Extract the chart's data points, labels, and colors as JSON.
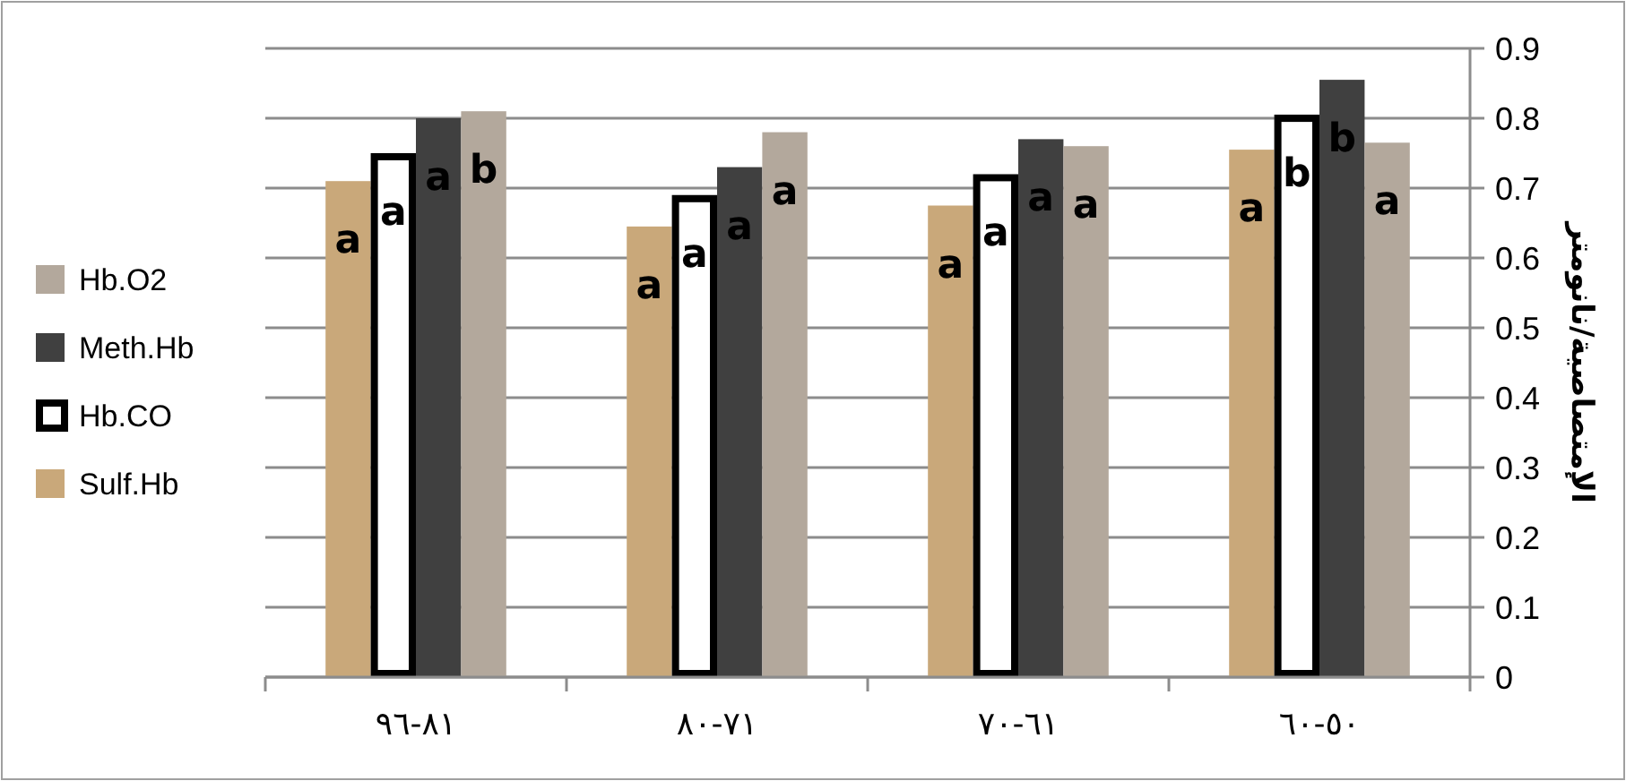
{
  "chart_data": {
    "type": "bar",
    "ylabel": "الإمتصاصية/نانومتر",
    "categories": [
      "٨١-٩٦",
      "٧١-٨٠",
      "٦١-٧٠",
      "٥٠-٦٠"
    ],
    "series": [
      {
        "name": "Sulf.Hb",
        "color": "#c9a87a",
        "values": [
          0.71,
          0.645,
          0.675,
          0.755
        ],
        "value_labels": [
          "a",
          "a",
          "a",
          "a"
        ]
      },
      {
        "name": "Hb.CO",
        "color": "#ffffff",
        "values": [
          0.75,
          0.69,
          0.72,
          0.805
        ],
        "value_labels": [
          "a",
          "a",
          "a",
          "b"
        ]
      },
      {
        "name": "Meth.Hb",
        "color": "#404040",
        "values": [
          0.8,
          0.73,
          0.77,
          0.855
        ],
        "value_labels": [
          "a",
          "a",
          "a",
          "b"
        ]
      },
      {
        "name": "Hb.O2",
        "color": "#b3a89c",
        "values": [
          0.81,
          0.78,
          0.76,
          0.765
        ],
        "value_labels": [
          "b",
          "a",
          "a",
          "a"
        ]
      }
    ],
    "ylim": [
      0,
      0.9
    ],
    "yticks": [
      0,
      0.1,
      0.2,
      0.3,
      0.4,
      0.5,
      0.6,
      0.7,
      0.8,
      0.9
    ],
    "grid": "y",
    "legend": "left"
  }
}
